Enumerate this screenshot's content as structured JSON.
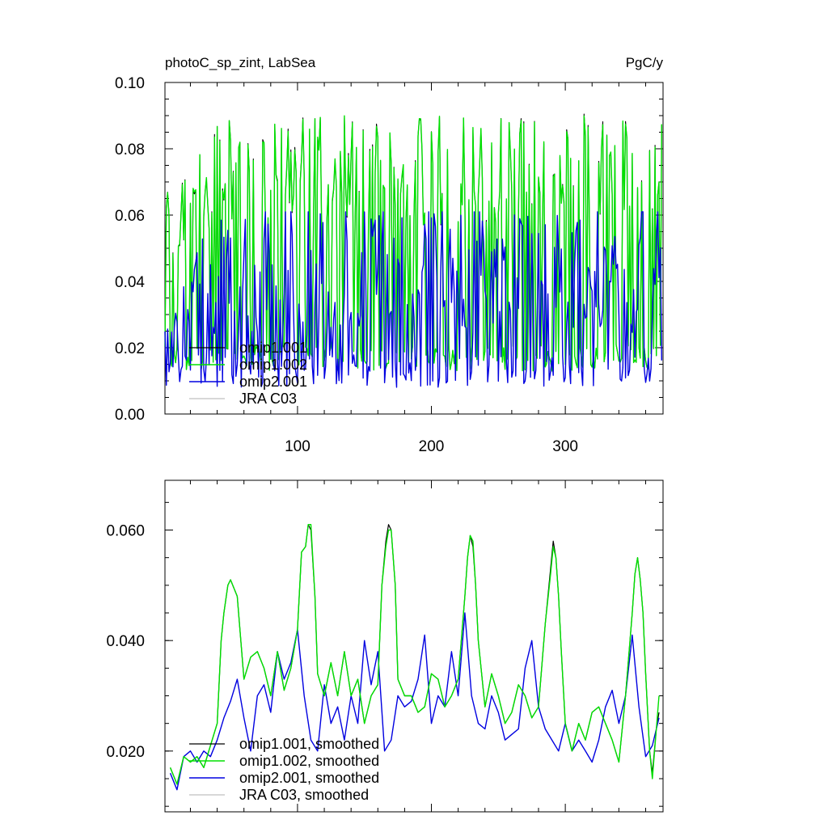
{
  "chart_data": [
    {
      "type": "line",
      "title_left": "photoC_sp_zint, LabSea",
      "title_right": "PgC/y",
      "xlabel": "",
      "ylabel": "",
      "xlim": [
        1,
        373
      ],
      "ylim": [
        0.0,
        0.1
      ],
      "x_ticks": [
        100,
        200,
        300
      ],
      "x_tick_labels": [
        "100",
        "200",
        "300"
      ],
      "y_ticks": [
        0.0,
        0.02,
        0.04,
        0.06,
        0.08,
        0.1
      ],
      "y_tick_labels": [
        "0.00",
        "0.02",
        "0.04",
        "0.06",
        "0.08",
        "0.10"
      ],
      "grid": false,
      "legend_position": "bottom-left",
      "series": [
        {
          "name": "omip1.001",
          "color": "#000000",
          "width": 1.2,
          "peaks_approx": [
            0.077,
            0.085,
            0.09,
            0.092,
            0.091,
            0.093,
            0.087,
            0.09,
            0.087
          ]
        },
        {
          "name": "omip1.002",
          "color": "#00e000",
          "width": 1.4,
          "peaks_approx": [
            0.076,
            0.085,
            0.088,
            0.092,
            0.091,
            0.092,
            0.086,
            0.089,
            0.087
          ]
        },
        {
          "name": "omip2.001",
          "color": "#0000e0",
          "width": 1.4,
          "peaks_approx": [
            0.052,
            0.055,
            0.06,
            0.06,
            0.06,
            0.06,
            0.06,
            0.06,
            0.06
          ]
        },
        {
          "name": "JRA C03",
          "color": "#c0c0c0",
          "width": 1.2,
          "peaks_approx": []
        }
      ]
    },
    {
      "type": "line",
      "xlabel": "",
      "ylabel": "",
      "xlim": [
        1,
        373
      ],
      "ylim": [
        0.009,
        0.069
      ],
      "y_ticks": [
        0.02,
        0.04,
        0.06
      ],
      "y_tick_labels": [
        "0.020",
        "0.040",
        "0.060"
      ],
      "grid": false,
      "legend_position": "bottom-left",
      "series": [
        {
          "name": "omip1.001, smoothed",
          "color": "#000000",
          "width": 1.2,
          "x": [
            5,
            10,
            15,
            20,
            25,
            30,
            35,
            40,
            43,
            45,
            48,
            50,
            55,
            60,
            65,
            70,
            75,
            80,
            85,
            90,
            95,
            100,
            103,
            106,
            108,
            110,
            113,
            115,
            120,
            125,
            130,
            135,
            140,
            145,
            150,
            155,
            160,
            163,
            166,
            168,
            170,
            173,
            175,
            180,
            185,
            190,
            195,
            200,
            205,
            210,
            215,
            220,
            225,
            227,
            229,
            231,
            233,
            235,
            240,
            245,
            250,
            255,
            260,
            265,
            270,
            275,
            280,
            285,
            289,
            291,
            293,
            295,
            297,
            300,
            305,
            310,
            315,
            320,
            325,
            330,
            335,
            340,
            345,
            350,
            352,
            354,
            356,
            358,
            360,
            363,
            365,
            368,
            370
          ],
          "y": [
            0.017,
            0.014,
            0.019,
            0.018,
            0.019,
            0.017,
            0.021,
            0.025,
            0.04,
            0.045,
            0.05,
            0.051,
            0.048,
            0.033,
            0.037,
            0.038,
            0.035,
            0.03,
            0.038,
            0.031,
            0.035,
            0.042,
            0.056,
            0.057,
            0.061,
            0.06,
            0.048,
            0.034,
            0.03,
            0.036,
            0.03,
            0.038,
            0.03,
            0.033,
            0.025,
            0.03,
            0.032,
            0.05,
            0.058,
            0.061,
            0.06,
            0.05,
            0.033,
            0.03,
            0.03,
            0.027,
            0.028,
            0.034,
            0.033,
            0.028,
            0.03,
            0.033,
            0.048,
            0.055,
            0.059,
            0.057,
            0.05,
            0.04,
            0.028,
            0.034,
            0.03,
            0.025,
            0.027,
            0.032,
            0.03,
            0.026,
            0.028,
            0.043,
            0.053,
            0.058,
            0.055,
            0.048,
            0.038,
            0.025,
            0.02,
            0.025,
            0.022,
            0.027,
            0.028,
            0.025,
            0.022,
            0.018,
            0.03,
            0.045,
            0.052,
            0.055,
            0.051,
            0.045,
            0.034,
            0.02,
            0.016,
            0.024,
            0.027
          ]
        },
        {
          "name": "omip1.002, smoothed",
          "color": "#00e000",
          "width": 1.4,
          "x": [
            5,
            10,
            15,
            20,
            25,
            30,
            35,
            40,
            43,
            45,
            48,
            50,
            55,
            60,
            65,
            70,
            75,
            80,
            85,
            90,
            95,
            100,
            103,
            106,
            108,
            110,
            113,
            115,
            120,
            125,
            130,
            135,
            140,
            145,
            150,
            155,
            160,
            163,
            166,
            168,
            170,
            173,
            175,
            180,
            185,
            190,
            195,
            200,
            205,
            210,
            215,
            220,
            225,
            227,
            229,
            231,
            233,
            235,
            240,
            245,
            250,
            255,
            260,
            265,
            270,
            275,
            280,
            285,
            289,
            291,
            293,
            295,
            297,
            300,
            305,
            310,
            315,
            320,
            325,
            330,
            335,
            340,
            345,
            350,
            352,
            354,
            356,
            358,
            360,
            363,
            365,
            368,
            370
          ],
          "y": [
            0.017,
            0.014,
            0.019,
            0.018,
            0.019,
            0.017,
            0.021,
            0.025,
            0.04,
            0.045,
            0.05,
            0.051,
            0.048,
            0.033,
            0.037,
            0.038,
            0.035,
            0.03,
            0.038,
            0.031,
            0.035,
            0.042,
            0.056,
            0.057,
            0.061,
            0.061,
            0.048,
            0.034,
            0.03,
            0.036,
            0.03,
            0.038,
            0.03,
            0.033,
            0.025,
            0.03,
            0.032,
            0.05,
            0.057,
            0.06,
            0.06,
            0.05,
            0.033,
            0.03,
            0.03,
            0.027,
            0.028,
            0.034,
            0.033,
            0.028,
            0.03,
            0.033,
            0.048,
            0.055,
            0.059,
            0.058,
            0.05,
            0.04,
            0.028,
            0.034,
            0.03,
            0.025,
            0.027,
            0.032,
            0.03,
            0.026,
            0.028,
            0.043,
            0.052,
            0.057,
            0.055,
            0.048,
            0.038,
            0.025,
            0.02,
            0.025,
            0.022,
            0.027,
            0.028,
            0.025,
            0.022,
            0.018,
            0.03,
            0.045,
            0.052,
            0.055,
            0.051,
            0.045,
            0.034,
            0.02,
            0.015,
            0.024,
            0.03
          ]
        },
        {
          "name": "omip2.001, smoothed",
          "color": "#0000e0",
          "width": 1.4,
          "x": [
            5,
            10,
            15,
            20,
            25,
            30,
            35,
            40,
            45,
            50,
            55,
            60,
            65,
            70,
            75,
            80,
            85,
            90,
            95,
            100,
            105,
            110,
            115,
            120,
            125,
            130,
            135,
            140,
            145,
            150,
            155,
            160,
            165,
            170,
            175,
            180,
            185,
            190,
            195,
            200,
            205,
            210,
            215,
            220,
            225,
            230,
            235,
            240,
            245,
            250,
            255,
            260,
            265,
            270,
            275,
            280,
            285,
            290,
            295,
            300,
            305,
            310,
            315,
            320,
            325,
            330,
            335,
            340,
            345,
            350,
            355,
            360,
            365,
            370
          ],
          "y": [
            0.016,
            0.013,
            0.019,
            0.02,
            0.018,
            0.02,
            0.019,
            0.022,
            0.026,
            0.029,
            0.033,
            0.026,
            0.02,
            0.03,
            0.032,
            0.027,
            0.038,
            0.033,
            0.036,
            0.042,
            0.03,
            0.022,
            0.02,
            0.032,
            0.025,
            0.028,
            0.022,
            0.03,
            0.025,
            0.04,
            0.032,
            0.038,
            0.02,
            0.022,
            0.03,
            0.028,
            0.029,
            0.033,
            0.041,
            0.025,
            0.03,
            0.028,
            0.038,
            0.03,
            0.045,
            0.03,
            0.025,
            0.024,
            0.03,
            0.027,
            0.022,
            0.023,
            0.024,
            0.035,
            0.04,
            0.028,
            0.024,
            0.022,
            0.02,
            0.025,
            0.02,
            0.022,
            0.02,
            0.018,
            0.022,
            0.028,
            0.031,
            0.025,
            0.03,
            0.041,
            0.028,
            0.019,
            0.021,
            0.026
          ]
        },
        {
          "name": "JRA C03, smoothed",
          "color": "#c0c0c0",
          "width": 1.2,
          "x": [],
          "y": []
        }
      ]
    }
  ]
}
